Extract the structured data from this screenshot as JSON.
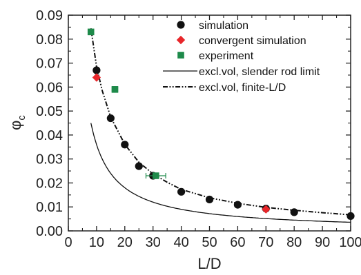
{
  "chart_data": {
    "type": "scatter",
    "xlabel": "L/D",
    "ylabel": {
      "main": "φ",
      "sub": "c"
    },
    "xlim": [
      0,
      100
    ],
    "ylim": [
      0.0,
      0.09
    ],
    "x_ticks": [
      "0",
      "10",
      "20",
      "30",
      "40",
      "50",
      "60",
      "70",
      "80",
      "90",
      "100"
    ],
    "y_ticks": [
      "0.00",
      "0.01",
      "0.02",
      "0.03",
      "0.04",
      "0.05",
      "0.06",
      "0.07",
      "0.08",
      "0.09"
    ],
    "legend_position": "top-right",
    "grid": false,
    "series": [
      {
        "name": "simulation",
        "marker": "circle",
        "color": "#111111",
        "points": [
          [
            10,
            0.067
          ],
          [
            15,
            0.047
          ],
          [
            20,
            0.036
          ],
          [
            25,
            0.027
          ],
          [
            30,
            0.023
          ],
          [
            40,
            0.0163
          ],
          [
            50,
            0.0131
          ],
          [
            60,
            0.0109
          ],
          [
            70,
            0.0093
          ],
          [
            80,
            0.0078
          ],
          [
            100,
            0.0062
          ]
        ]
      },
      {
        "name": "convergent simulation",
        "marker": "diamond",
        "color": "#e8262a",
        "points": [
          [
            10,
            0.064
          ],
          [
            70,
            0.009
          ]
        ]
      },
      {
        "name": "experiment",
        "marker": "square",
        "color": "#1e8a4a",
        "points": [
          [
            8,
            0.083
          ],
          [
            16.5,
            0.059
          ],
          [
            31,
            0.023
          ]
        ],
        "x_error": [
          0.5,
          1.0,
          3.5
        ]
      },
      {
        "name": "excl.vol, slender rod limit",
        "line": "solid",
        "color": "#111111",
        "function": "0.36/x",
        "x_range": [
          8,
          100
        ]
      },
      {
        "name": "excl.vol, finite-L/D",
        "line": "dash-dot-dot",
        "color": "#111111",
        "points": [
          [
            8,
            0.0845
          ],
          [
            10,
            0.0685
          ],
          [
            12,
            0.0585
          ],
          [
            15,
            0.0475
          ],
          [
            20,
            0.0361
          ],
          [
            25,
            0.0286
          ],
          [
            30,
            0.0238
          ],
          [
            35,
            0.0203
          ],
          [
            40,
            0.0173
          ],
          [
            50,
            0.0138
          ],
          [
            60,
            0.0115
          ],
          [
            70,
            0.0098
          ],
          [
            80,
            0.0086
          ],
          [
            90,
            0.0076
          ],
          [
            100,
            0.0067
          ]
        ]
      }
    ]
  }
}
